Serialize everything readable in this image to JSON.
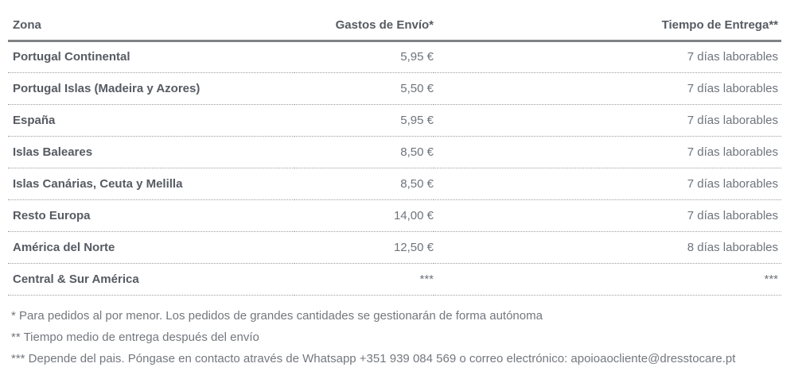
{
  "table": {
    "columns": [
      {
        "label": "Zona"
      },
      {
        "label": "Gastos de Envío*"
      },
      {
        "label": "Tiempo de Entrega**"
      }
    ],
    "rows": [
      {
        "zone": "Portugal Continental",
        "cost": "5,95 €",
        "delivery": "7 días laborables"
      },
      {
        "zone": "Portugal Islas (Madeira y Azores)",
        "cost": "5,50 €",
        "delivery": "7 días laborables"
      },
      {
        "zone": "España",
        "cost": "5,95 €",
        "delivery": "7 días laborables"
      },
      {
        "zone": "Islas Baleares",
        "cost": "8,50 €",
        "delivery": "7 días laborables"
      },
      {
        "zone": "Islas Canárias, Ceuta y Melilla",
        "cost": "8,50 €",
        "delivery": "7 días laborables"
      },
      {
        "zone": "Resto Europa",
        "cost": "14,00 €",
        "delivery": "7 días laborables"
      },
      {
        "zone": "América del Norte",
        "cost": "12,50 €",
        "delivery": "8 días laborables"
      },
      {
        "zone": "Central & Sur América",
        "cost": "***",
        "delivery": "***"
      }
    ]
  },
  "footnotes": [
    "* Para pedidos al por menor. Los pedidos de grandes cantidades se gestionarán de forma autónoma",
    "** Tiempo medio de entrega después del envío",
    "*** Depende del pais. Póngase en contacto através de Whatsapp +351 939 084 569 o correo electrónico: apoioaocliente@dresstocare.pt"
  ],
  "contact": {
    "whatsapp_number": "+351 939 084 569",
    "email": "apoioaocliente@dresstocare.pt"
  },
  "colors": {
    "heading_text": "#565b63",
    "value_text": "#6e747c",
    "footnote_text": "#73777d",
    "header_rule": "#7f8386",
    "row_divider": "#9a9ea2",
    "background": "#ffffff"
  }
}
